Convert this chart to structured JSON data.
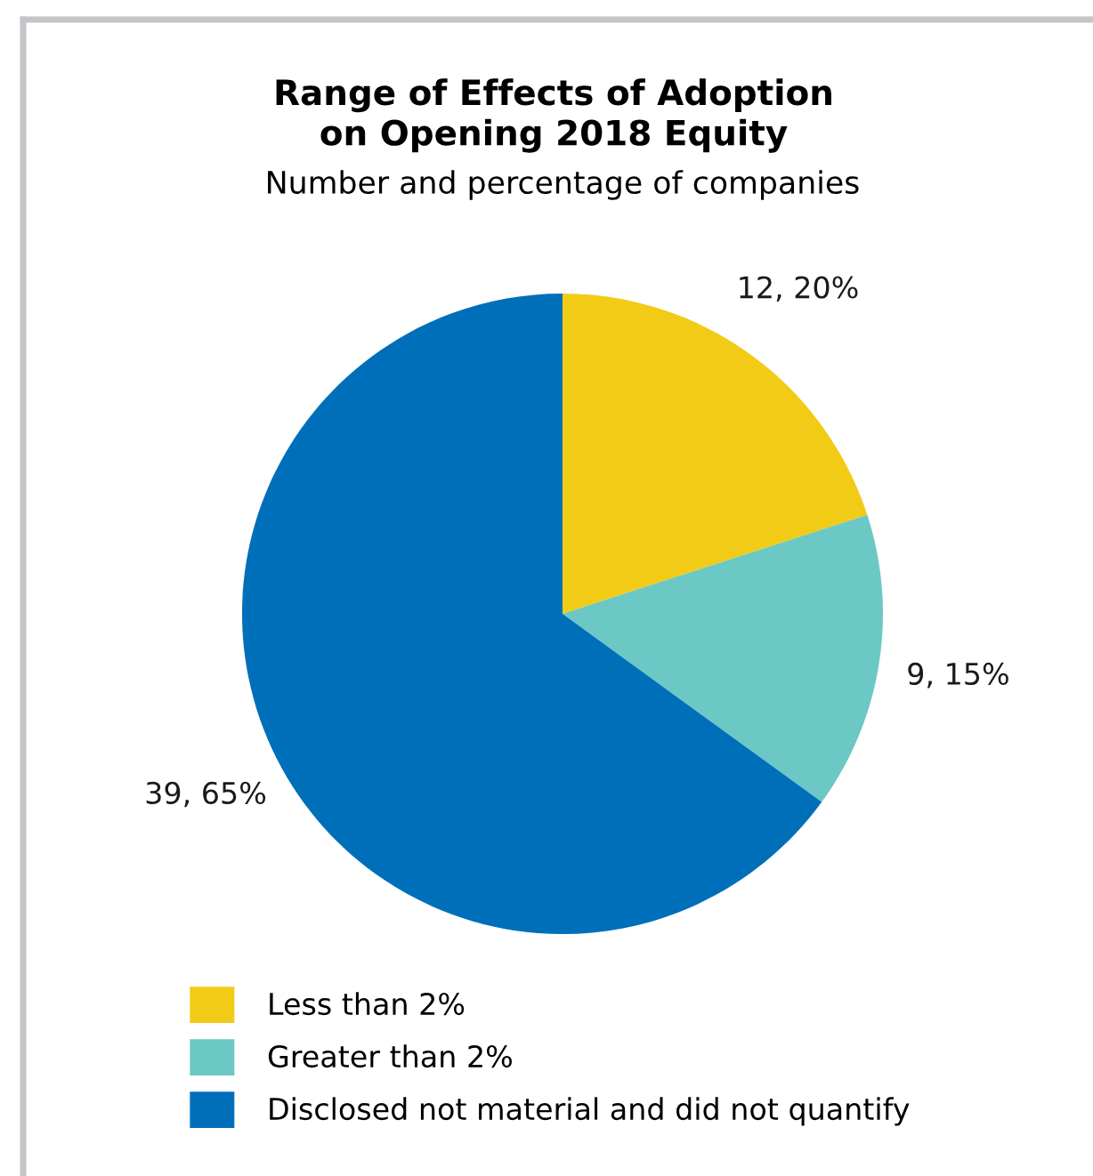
{
  "chart_data": {
    "type": "pie",
    "title": "Range of Effects of Adoption\non Opening 2018 Equity",
    "subtitle": "Number and percentage of companies",
    "categories": [
      "Less than 2%",
      "Greater than 2%",
      "Disclosed not material and did not quantify"
    ],
    "values": [
      12,
      9,
      39
    ],
    "value_labels": [
      "12, 20%",
      "9, 15%",
      "39, 65%"
    ],
    "colors": [
      "#f2cb17",
      "#6cc8c4",
      "#006fba"
    ],
    "legend": "bottom"
  }
}
